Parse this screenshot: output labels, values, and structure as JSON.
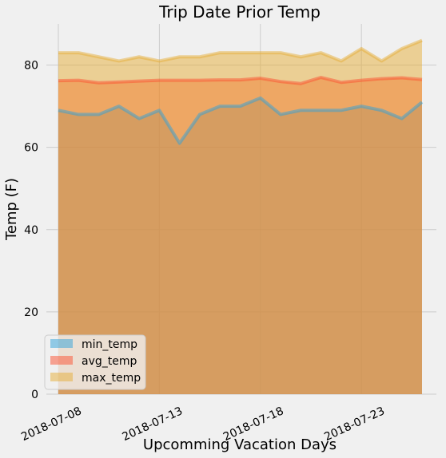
{
  "chart_data": {
    "type": "area",
    "title": "Trip Date Prior Temp",
    "xlabel": "Upcomming Vacation Days",
    "ylabel": "Temp (F)",
    "x": [
      "2018-07-07",
      "2018-07-08",
      "2018-07-09",
      "2018-07-10",
      "2018-07-11",
      "2018-07-12",
      "2018-07-13",
      "2018-07-14",
      "2018-07-15",
      "2018-07-16",
      "2018-07-17",
      "2018-07-18",
      "2018-07-19",
      "2018-07-20",
      "2018-07-21",
      "2018-07-22",
      "2018-07-23",
      "2018-07-24",
      "2018-07-25"
    ],
    "x_ticks": [
      "2018-07-08",
      "2018-07-13",
      "2018-07-18",
      "2018-07-23"
    ],
    "y_ticks": [
      0,
      20,
      40,
      60,
      80
    ],
    "ylim": [
      0,
      90
    ],
    "stacked": false,
    "grid": true,
    "legend_position": "lower-left",
    "series": [
      {
        "name": "min_temp",
        "color": "#30a2da",
        "values": [
          69,
          68,
          68,
          70,
          67,
          69,
          61,
          68,
          70,
          70,
          72,
          68,
          69,
          69,
          69,
          70,
          69,
          67,
          71
        ]
      },
      {
        "name": "avg_temp",
        "color": "#fc4f30",
        "values": [
          76.2,
          76.3,
          75.7,
          75.9,
          76.1,
          76.3,
          76.3,
          76.3,
          76.4,
          76.4,
          76.8,
          76.0,
          75.5,
          77.0,
          75.8,
          76.3,
          76.7,
          76.9,
          76.5
        ]
      },
      {
        "name": "max_temp",
        "color": "#e5ae38",
        "values": [
          83,
          83,
          82,
          81,
          82,
          81,
          82,
          82,
          83,
          83,
          83,
          83,
          82,
          83,
          81,
          84,
          81,
          84,
          86
        ]
      }
    ]
  }
}
